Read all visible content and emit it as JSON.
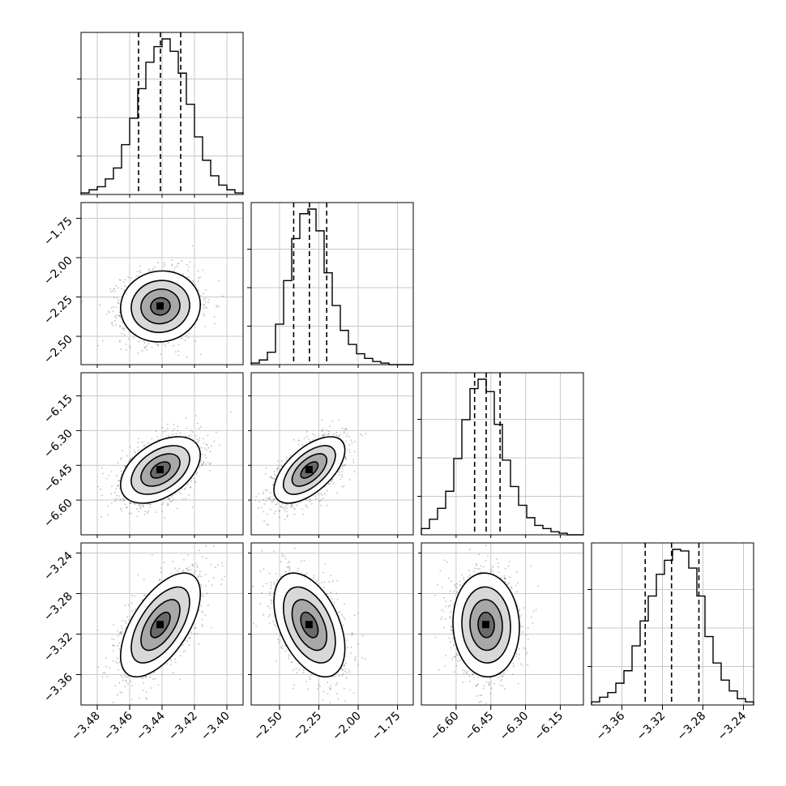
{
  "chart_data": {
    "type": "corner",
    "params": [
      {
        "range": [
          -3.49,
          -3.39
        ],
        "ticks": [
          {
            "v": -3.48,
            "label": "−3.48"
          },
          {
            "v": -3.46,
            "label": "−3.46"
          },
          {
            "v": -3.44,
            "label": "−3.44"
          },
          {
            "v": -3.42,
            "label": "−3.42"
          },
          {
            "v": -3.4,
            "label": "−3.40"
          }
        ],
        "quantiles": [
          -3.4545,
          -3.441,
          -3.4285
        ]
      },
      {
        "range": [
          -2.68,
          -1.65
        ],
        "ticks": [
          {
            "v": -2.5,
            "label": "−2.50"
          },
          {
            "v": -2.25,
            "label": "−2.25"
          },
          {
            "v": -2.0,
            "label": "−2.00"
          },
          {
            "v": -1.75,
            "label": "−1.75"
          }
        ],
        "quantiles": [
          -2.41,
          -2.31,
          -2.2
        ]
      },
      {
        "range": [
          -6.75,
          -6.05
        ],
        "ticks": [
          {
            "v": -6.6,
            "label": "−6.60"
          },
          {
            "v": -6.45,
            "label": "−6.45"
          },
          {
            "v": -6.3,
            "label": "−6.30"
          },
          {
            "v": -6.15,
            "label": "−6.15"
          }
        ],
        "quantiles": [
          -6.52,
          -6.47,
          -6.41
        ]
      },
      {
        "range": [
          -3.39,
          -3.23
        ],
        "ticks": [
          {
            "v": -3.36,
            "label": "−3.36"
          },
          {
            "v": -3.32,
            "label": "−3.32"
          },
          {
            "v": -3.28,
            "label": "−3.28"
          },
          {
            "v": -3.24,
            "label": "−3.24"
          }
        ],
        "quantiles": [
          -3.337,
          -3.311,
          -3.284
        ]
      }
    ],
    "histograms": [
      [
        0.01,
        0.03,
        0.05,
        0.1,
        0.17,
        0.32,
        0.49,
        0.68,
        0.85,
        0.95,
        1.0,
        0.92,
        0.78,
        0.58,
        0.37,
        0.22,
        0.12,
        0.06,
        0.03,
        0.01
      ],
      [
        0.01,
        0.03,
        0.08,
        0.26,
        0.54,
        0.81,
        0.97,
        1.0,
        0.86,
        0.59,
        0.38,
        0.22,
        0.13,
        0.07,
        0.04,
        0.02,
        0.01,
        0.0,
        0.0,
        0.0
      ],
      [
        0.04,
        0.1,
        0.17,
        0.28,
        0.49,
        0.74,
        0.94,
        1.0,
        0.92,
        0.71,
        0.48,
        0.31,
        0.19,
        0.11,
        0.06,
        0.04,
        0.02,
        0.01,
        0.0,
        0.0
      ],
      [
        0.02,
        0.05,
        0.08,
        0.14,
        0.22,
        0.38,
        0.54,
        0.7,
        0.84,
        0.93,
        1.0,
        0.99,
        0.88,
        0.7,
        0.44,
        0.27,
        0.16,
        0.09,
        0.04,
        0.02
      ]
    ],
    "stds": [
      0.012,
      0.11,
      0.07,
      0.025
    ],
    "correlations": {
      "1,0": 0.05,
      "2,0": 0.45,
      "2,1": 0.6,
      "3,0": 0.6,
      "3,1": -0.45,
      "3,2": -0.05
    },
    "grid": true,
    "series": []
  }
}
